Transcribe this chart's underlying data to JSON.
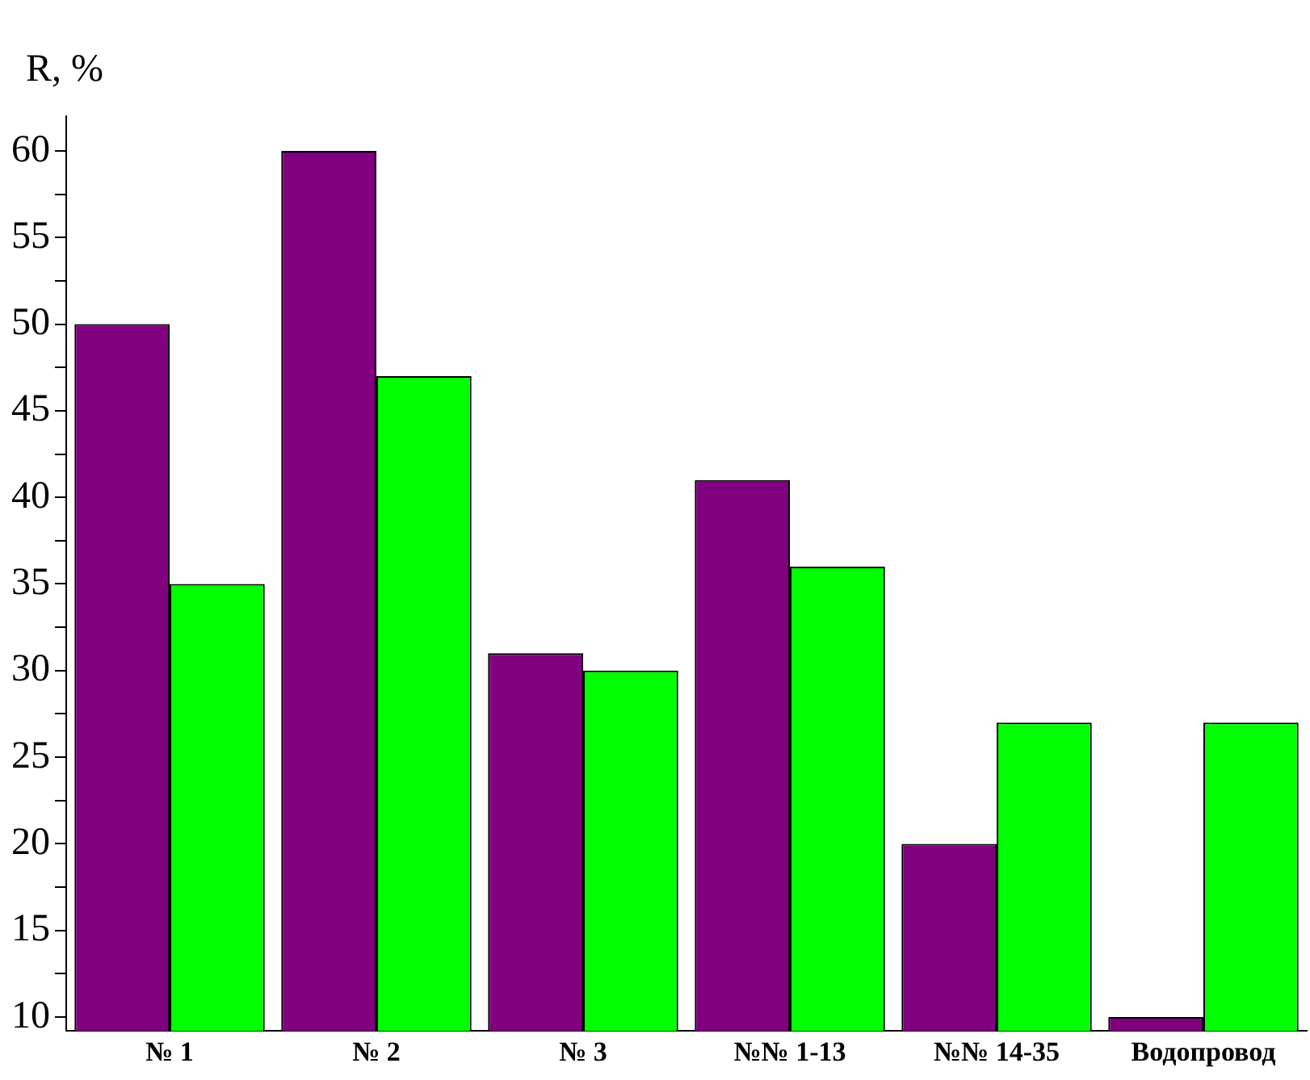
{
  "chart_data": {
    "type": "bar",
    "ylabel": "R, %",
    "categories": [
      "№ 1",
      "№ 2",
      "№ 3",
      "№№ 1-13",
      "№№ 14-35",
      "Водопровод"
    ],
    "series": [
      {
        "color": "#800080",
        "values": [
          50,
          60,
          31,
          41,
          20,
          10
        ]
      },
      {
        "color": "#00ff00",
        "values": [
          35,
          47,
          30,
          36,
          27,
          27
        ]
      }
    ],
    "ylim": [
      9.2,
      62
    ],
    "yticks": [
      10,
      {
        "value": 12.5,
        "label": null
      },
      15,
      {
        "value": 17.5,
        "label": null
      },
      20,
      {
        "value": 22.5,
        "label": null
      },
      25,
      {
        "value": 27.5,
        "label": null
      },
      30,
      {
        "value": 32.5,
        "label": null
      },
      35,
      {
        "value": 37.5,
        "label": null
      },
      40,
      {
        "value": 42.5,
        "label": null
      },
      45,
      {
        "value": 47.5,
        "label": null
      },
      50,
      {
        "value": 52.5,
        "label": null
      },
      55,
      {
        "value": 57.5,
        "label": null
      },
      60
    ],
    "grid": false,
    "legend": false
  }
}
